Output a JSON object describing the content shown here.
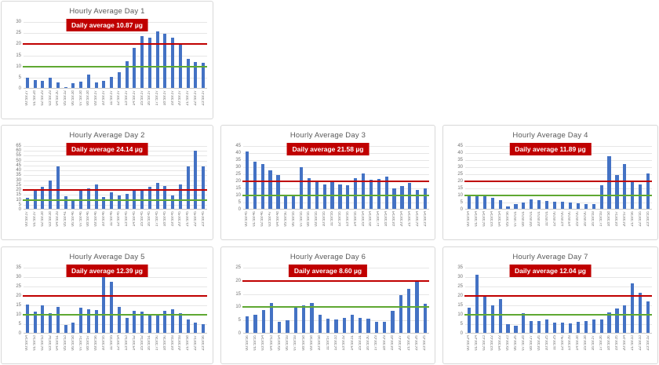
{
  "page": {
    "background": "#ffffff"
  },
  "colors": {
    "bar": "#4472c4",
    "upper_limit_line": "#c00000",
    "lower_limit_line": "#5fa832",
    "badge_bg": "#c00000",
    "badge_text": "#ffffff",
    "gridline": "#e6e6e6",
    "axis_line": "#c9c9c9",
    "tick_text": "#737373",
    "title_text": "#595959"
  },
  "chart_data": [
    {
      "type": "bar",
      "title": "Hourly Average Day 1",
      "avg_label": "Daily average 10.87 µg",
      "ylim": [
        0,
        30
      ],
      "ytick_step": 5,
      "grid": true,
      "ref_lines": [
        {
          "name": "upper-limit",
          "value": 20,
          "color": "#c00000"
        },
        {
          "name": "lower-limit",
          "value": 10,
          "color": "#5fa832"
        }
      ],
      "categories": [
        "00:59:27",
        "01:59:28",
        "02:59:29",
        "03:59:29",
        "04:59:30",
        "05:59:32",
        "06:59:38",
        "07:59:38",
        "08:59:38",
        "09:59:37",
        "10:59:37",
        "11:59:37",
        "12:59:37",
        "13:59:37",
        "14:59:37",
        "15:59:37",
        "16:59:37",
        "17:59:37",
        "18:59:37",
        "19:59:37",
        "20:59:37",
        "21:59:37",
        "22:59:37",
        "23:59:37"
      ],
      "values": [
        5.1,
        4.0,
        3.7,
        4.9,
        2.7,
        0.8,
        2.6,
        3.3,
        6.5,
        3.0,
        3.4,
        5.4,
        7.3,
        12.4,
        18.5,
        23.6,
        23.1,
        25.8,
        24.7,
        22.9,
        19.7,
        13.3,
        12.0,
        11.8
      ]
    },
    {
      "type": "bar",
      "title": "Hourly Average Day 2",
      "avg_label": "Daily average 24.14 µg",
      "ylim": [
        0,
        65
      ],
      "ytick_step": 5,
      "grid": true,
      "ref_lines": [
        {
          "name": "upper-limit",
          "value": 20,
          "color": "#c00000"
        },
        {
          "name": "lower-limit",
          "value": 10,
          "color": "#5fa832"
        }
      ],
      "categories": [
        "00:59:37",
        "01:59:37",
        "02:59:38",
        "03:59:38",
        "04:59:39",
        "05:59:41",
        "06:59:46",
        "07:59:46",
        "08:59:46",
        "09:59:46",
        "10:59:46",
        "11:59:46",
        "12:59:45",
        "13:59:45",
        "14:59:45",
        "15:59:45",
        "16:59:45",
        "17:59:45",
        "18:59:45",
        "19:59:45",
        "20:59:45",
        "21:59:45",
        "22:59:45",
        "23:59:45"
      ],
      "values": [
        12,
        19,
        23,
        29.5,
        44,
        13.5,
        8.5,
        19,
        21.5,
        25.5,
        12.5,
        18,
        14.5,
        16,
        19,
        19,
        23.5,
        27,
        24,
        14.5,
        25.5,
        44,
        60,
        44
      ]
    },
    {
      "type": "bar",
      "title": "Hourly Average Day 3",
      "avg_label": "Daily average 21.58 µg",
      "ylim": [
        0,
        45
      ],
      "ytick_step": 5,
      "grid": true,
      "ref_lines": [
        {
          "name": "upper-limit",
          "value": 20,
          "color": "#c00000"
        },
        {
          "name": "lower-limit",
          "value": 10,
          "color": "#5fa832"
        }
      ],
      "categories": [
        "00:59:45",
        "01:59:46",
        "02:59:46",
        "03:59:47",
        "04:59:48",
        "05:59:50",
        "06:59:55",
        "07:59:55",
        "08:59:55",
        "09:59:55",
        "10:59:55",
        "11:59:55",
        "12:59:55",
        "13:59:55",
        "14:59:55",
        "15:59:54",
        "16:59:54",
        "17:59:54",
        "18:59:54",
        "19:59:54",
        "20:59:54",
        "21:59:54",
        "22:59:54",
        "23:59:54"
      ],
      "values": [
        41,
        34,
        32.5,
        28,
        24.5,
        9.5,
        9.5,
        30,
        22,
        19.5,
        18,
        19.5,
        18,
        17.5,
        22,
        25.5,
        21,
        21.5,
        23.5,
        15,
        16.5,
        19,
        14,
        15
      ]
    },
    {
      "type": "bar",
      "title": "Hourly Average Day 4",
      "avg_label": "Daily average 11.89 µg",
      "ylim": [
        0,
        45
      ],
      "ytick_step": 5,
      "grid": true,
      "ref_lines": [
        {
          "name": "upper-limit",
          "value": 20,
          "color": "#c00000"
        },
        {
          "name": "lower-limit",
          "value": 10,
          "color": "#5fa832"
        }
      ],
      "categories": [
        "00:59:54",
        "01:59:54",
        "02:59:54",
        "03:59:54",
        "04:59:54",
        "05:59:56",
        "07:00:01",
        "08:00:01",
        "09:00:01",
        "10:00:01",
        "11:00:01",
        "12:00:00",
        "13:00:00",
        "14:00:00",
        "15:00:00",
        "16:00:00",
        "16:59:59",
        "17:59:59",
        "18:59:58",
        "19:59:57",
        "20:59:57",
        "21:59:56",
        "22:59:55",
        "23:59:55"
      ],
      "values": [
        10.5,
        10,
        10.5,
        8.5,
        6.5,
        2,
        4,
        5,
        7,
        6.5,
        6,
        5.5,
        5.5,
        5,
        4.5,
        4,
        4,
        17.5,
        38,
        24.5,
        32,
        20,
        18,
        25.5
      ]
    },
    {
      "type": "bar",
      "title": "Hourly Average Day 5",
      "avg_label": "Daily average 12.39 µg",
      "ylim": [
        0,
        35
      ],
      "ytick_step": 5,
      "grid": true,
      "ref_lines": [
        {
          "name": "upper-limit",
          "value": 20,
          "color": "#c00000"
        },
        {
          "name": "lower-limit",
          "value": 10,
          "color": "#5fa832"
        }
      ],
      "categories": [
        "00:59:54",
        "01:59:53",
        "02:59:53",
        "03:59:52",
        "04:59:51",
        "05:59:53",
        "06:59:58",
        "07:59:57",
        "08:59:57",
        "09:59:56",
        "10:59:55",
        "11:59:55",
        "12:59:54",
        "13:59:53",
        "14:59:52",
        "15:59:52",
        "16:59:51",
        "17:59:50",
        "18:59:50",
        "19:59:59",
        "20:59:59",
        "21:59:58",
        "22:59:57",
        "23:59:56"
      ],
      "values": [
        15.5,
        11.5,
        15,
        11,
        14,
        4.5,
        5.8,
        13.8,
        12.8,
        12.5,
        31,
        27.5,
        14.2,
        8.5,
        12,
        11.5,
        9.5,
        9.5,
        12,
        13,
        11,
        7.5,
        6,
        5
      ]
    },
    {
      "type": "bar",
      "title": "Hourly Average Day 6",
      "avg_label": "Daily average 8.60 µg",
      "ylim": [
        0,
        25
      ],
      "ytick_step": 5,
      "grid": true,
      "ref_lines": [
        {
          "name": "upper-limit",
          "value": 20,
          "color": "#c00000"
        },
        {
          "name": "lower-limit",
          "value": 10,
          "color": "#5fa832"
        }
      ],
      "categories": [
        "00:59:56",
        "01:59:55",
        "03:59:54",
        "04:59:53",
        "05:59:54",
        "06:59:59",
        "07:59:59",
        "08:59:58",
        "09:59:58",
        "10:59:58",
        "11:59:57",
        "12:59:33",
        "13:59:32",
        "14:59:31",
        "15:59:31",
        "16:59:30",
        "17:59:29",
        "18:59:29",
        "19:59:28",
        "20:59:27",
        "21:59:26",
        "22:59:26",
        "23:59:25"
      ],
      "values": [
        6.5,
        7,
        9,
        11.7,
        4.5,
        5.2,
        9.8,
        10.8,
        11.6,
        7.2,
        5.8,
        5.3,
        6.0,
        7.0,
        6.0,
        5.6,
        4.5,
        4.6,
        8.5,
        14.7,
        17,
        19.5,
        11.3
      ]
    },
    {
      "type": "bar",
      "title": "Hourly Average Day 7",
      "avg_label": "Daily average 12.04 µg",
      "ylim": [
        0,
        35
      ],
      "ytick_step": 5,
      "grid": true,
      "ref_lines": [
        {
          "name": "upper-limit",
          "value": 20,
          "color": "#c00000"
        },
        {
          "name": "lower-limit",
          "value": 10,
          "color": "#5fa832"
        }
      ],
      "categories": [
        "00:59:24",
        "01:59:24",
        "02:59:23",
        "03:59:22",
        "04:59:22",
        "05:59:23",
        "06:59:26",
        "07:59:28",
        "08:59:27",
        "09:59:26",
        "10:59:25",
        "11:59:25",
        "12:59:40",
        "13:59:39",
        "14:59:38",
        "15:59:38",
        "16:59:37",
        "17:59:36",
        "18:59:36",
        "19:59:35",
        "20:59:34",
        "21:59:33",
        "22:59:33",
        "23:59:32"
      ],
      "values": [
        13.8,
        31.3,
        19.8,
        15,
        18.5,
        5,
        4,
        11,
        6.8,
        6.8,
        7.5,
        5.8,
        5.8,
        5.5,
        6.3,
        6.8,
        7.5,
        7.5,
        11.2,
        13.5,
        15,
        26.5,
        21.5,
        17
      ]
    }
  ]
}
